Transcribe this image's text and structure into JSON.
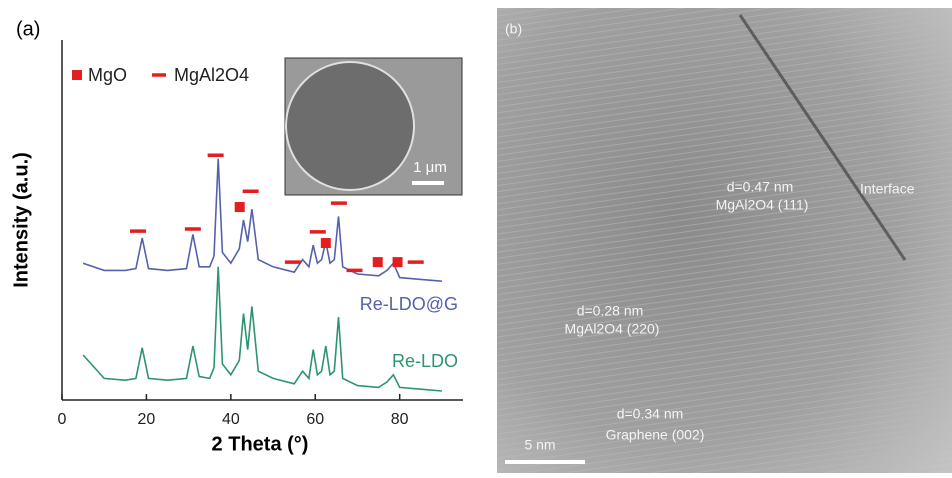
{
  "chart_data": {
    "type": "line",
    "panel_label": "(a)",
    "xlabel": "2 Theta (°)",
    "ylabel": "Intensity (a.u.)",
    "xlim": [
      0,
      95
    ],
    "ylim": [
      0,
      10
    ],
    "xticks": [
      0,
      20,
      40,
      60,
      80
    ],
    "series": [
      {
        "name": "Re-LDO@G",
        "color": "#5561ad",
        "x": [
          5,
          10,
          15,
          17.5,
          19,
          20.5,
          25,
          29.5,
          31,
          32.5,
          35,
          36,
          37,
          38,
          40,
          42,
          43,
          44,
          45,
          46.5,
          50,
          55,
          57,
          58.5,
          59.5,
          60.5,
          61.5,
          62.5,
          63.5,
          64.5,
          65.5,
          66.5,
          70,
          75,
          77,
          78.5,
          80,
          85,
          90
        ],
        "values": [
          3.8,
          3.6,
          3.6,
          3.65,
          4.5,
          3.65,
          3.6,
          3.65,
          4.6,
          3.7,
          3.7,
          4.0,
          6.7,
          4.1,
          3.8,
          4.2,
          5.0,
          4.4,
          5.3,
          3.9,
          3.7,
          3.55,
          3.9,
          3.7,
          4.3,
          3.8,
          3.9,
          4.4,
          3.8,
          3.9,
          5.1,
          3.7,
          3.5,
          3.45,
          3.6,
          3.8,
          3.4,
          3.35,
          3.3
        ]
      },
      {
        "name": "Re-LDO",
        "color": "#2e9470",
        "x": [
          5,
          10,
          15,
          17.5,
          19,
          20.5,
          25,
          29.5,
          31,
          32.5,
          35,
          36,
          37,
          38,
          40,
          42,
          43,
          44,
          45,
          46.5,
          50,
          55,
          57,
          58.5,
          59.5,
          60.5,
          61.5,
          62.5,
          63.5,
          64.5,
          65.5,
          66.5,
          70,
          75,
          77,
          78.5,
          80,
          85,
          90
        ],
        "values": [
          1.25,
          0.6,
          0.55,
          0.6,
          1.45,
          0.6,
          0.55,
          0.6,
          1.5,
          0.65,
          0.6,
          0.9,
          3.7,
          1.0,
          0.7,
          1.1,
          2.4,
          1.4,
          2.6,
          0.8,
          0.6,
          0.45,
          0.8,
          0.6,
          1.4,
          0.7,
          0.8,
          1.5,
          0.7,
          0.8,
          2.3,
          0.6,
          0.4,
          0.35,
          0.5,
          0.7,
          0.35,
          0.3,
          0.25
        ]
      },
      {
        "name": "MgO",
        "color": "#e41e1e",
        "marker": "square",
        "x": [
          42.1,
          62.5,
          74.8,
          79.5
        ],
        "values": [
          5.36,
          4.36,
          3.83,
          3.83
        ]
      },
      {
        "name": "MgAl2O4",
        "color": "#e41e1e",
        "marker": "dash",
        "x": [
          18,
          31,
          36.4,
          44.7,
          54.7,
          60.6,
          65.6,
          69.3,
          83.8
        ],
        "values": [
          4.69,
          4.75,
          6.8,
          5.8,
          3.83,
          4.67,
          5.47,
          3.6,
          3.83
        ]
      }
    ]
  },
  "inset": {
    "scale_bar": "1 μm"
  },
  "tem_image": {
    "corner_label": "(b)",
    "spacing_1": "d=0.47 nm",
    "plane_1": "MgAl2O4 (111)",
    "interface": "Interface",
    "spacing_2": "d=0.28 nm",
    "plane_2": "MgAl2O4 (220)",
    "spacing_3": "d=0.34 nm",
    "plane_3": "Graphene (002)",
    "scale_bar": "5 nm"
  }
}
